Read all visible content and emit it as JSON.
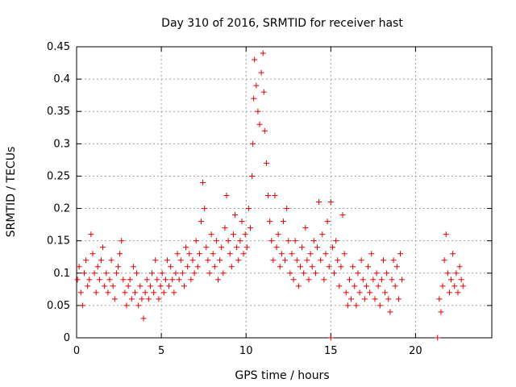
{
  "chart_data": {
    "type": "scatter",
    "title": "Day 310 of 2016, SRMTID for receiver hast",
    "xlabel": "GPS time / hours",
    "ylabel": "SRMTID / TECUs",
    "xlim": [
      0,
      24.5
    ],
    "ylim": [
      0,
      0.45
    ],
    "xticks": [
      "0",
      "5",
      "10",
      "15",
      "20"
    ],
    "yticks": [
      "0",
      "0.05",
      "0.1",
      "0.15",
      "0.2",
      "0.25",
      "0.3",
      "0.35",
      "0.4",
      "0.45"
    ],
    "grid": true,
    "marker": "+",
    "color": "#e00000",
    "series": [
      {
        "points": [
          [
            0.05,
            0.09
          ],
          [
            0.15,
            0.11
          ],
          [
            0.25,
            0.07
          ],
          [
            0.35,
            0.05
          ],
          [
            0.45,
            0.1
          ],
          [
            0.55,
            0.12
          ],
          [
            0.65,
            0.08
          ],
          [
            0.75,
            0.09
          ],
          [
            0.85,
            0.16
          ],
          [
            0.95,
            0.13
          ],
          [
            1.05,
            0.1
          ],
          [
            1.15,
            0.07
          ],
          [
            1.25,
            0.11
          ],
          [
            1.35,
            0.09
          ],
          [
            1.45,
            0.12
          ],
          [
            1.55,
            0.14
          ],
          [
            1.65,
            0.08
          ],
          [
            1.75,
            0.1
          ],
          [
            1.85,
            0.07
          ],
          [
            1.95,
            0.09
          ],
          [
            2.05,
            0.12
          ],
          [
            2.15,
            0.08
          ],
          [
            2.25,
            0.06
          ],
          [
            2.35,
            0.1
          ],
          [
            2.45,
            0.11
          ],
          [
            2.55,
            0.13
          ],
          [
            2.65,
            0.15
          ],
          [
            2.75,
            0.09
          ],
          [
            2.85,
            0.07
          ],
          [
            2.95,
            0.05
          ],
          [
            3.05,
            0.08
          ],
          [
            3.15,
            0.09
          ],
          [
            3.25,
            0.06
          ],
          [
            3.35,
            0.11
          ],
          [
            3.45,
            0.07
          ],
          [
            3.55,
            0.1
          ],
          [
            3.65,
            0.05
          ],
          [
            3.75,
            0.08
          ],
          [
            3.85,
            0.06
          ],
          [
            3.95,
            0.03
          ],
          [
            4.05,
            0.07
          ],
          [
            4.15,
            0.09
          ],
          [
            4.25,
            0.06
          ],
          [
            4.35,
            0.08
          ],
          [
            4.45,
            0.1
          ],
          [
            4.55,
            0.07
          ],
          [
            4.65,
            0.12
          ],
          [
            4.75,
            0.09
          ],
          [
            4.85,
            0.06
          ],
          [
            4.95,
            0.08
          ],
          [
            5.05,
            0.1
          ],
          [
            5.15,
            0.07
          ],
          [
            5.25,
            0.09
          ],
          [
            5.35,
            0.12
          ],
          [
            5.45,
            0.08
          ],
          [
            5.55,
            0.11
          ],
          [
            5.65,
            0.09
          ],
          [
            5.75,
            0.07
          ],
          [
            5.85,
            0.1
          ],
          [
            5.95,
            0.13
          ],
          [
            6.05,
            0.09
          ],
          [
            6.15,
            0.12
          ],
          [
            6.25,
            0.1
          ],
          [
            6.35,
            0.08
          ],
          [
            6.45,
            0.14
          ],
          [
            6.55,
            0.11
          ],
          [
            6.65,
            0.13
          ],
          [
            6.75,
            0.09
          ],
          [
            6.85,
            0.12
          ],
          [
            6.95,
            0.1
          ],
          [
            7.05,
            0.15
          ],
          [
            7.15,
            0.11
          ],
          [
            7.25,
            0.13
          ],
          [
            7.35,
            0.18
          ],
          [
            7.45,
            0.24
          ],
          [
            7.55,
            0.2
          ],
          [
            7.65,
            0.14
          ],
          [
            7.75,
            0.12
          ],
          [
            7.85,
            0.1
          ],
          [
            7.95,
            0.16
          ],
          [
            8.05,
            0.13
          ],
          [
            8.15,
            0.11
          ],
          [
            8.25,
            0.15
          ],
          [
            8.35,
            0.09
          ],
          [
            8.45,
            0.12
          ],
          [
            8.55,
            0.14
          ],
          [
            8.65,
            0.1
          ],
          [
            8.75,
            0.17
          ],
          [
            8.85,
            0.22
          ],
          [
            8.95,
            0.15
          ],
          [
            9.05,
            0.13
          ],
          [
            9.15,
            0.11
          ],
          [
            9.25,
            0.16
          ],
          [
            9.35,
            0.19
          ],
          [
            9.45,
            0.14
          ],
          [
            9.55,
            0.12
          ],
          [
            9.65,
            0.15
          ],
          [
            9.75,
            0.18
          ],
          [
            9.85,
            0.13
          ],
          [
            9.95,
            0.16
          ],
          [
            10.05,
            0.14
          ],
          [
            10.15,
            0.2
          ],
          [
            10.25,
            0.17
          ],
          [
            10.35,
            0.25
          ],
          [
            10.4,
            0.3
          ],
          [
            10.45,
            0.37
          ],
          [
            10.5,
            0.43
          ],
          [
            10.6,
            0.39
          ],
          [
            10.7,
            0.35
          ],
          [
            10.8,
            0.33
          ],
          [
            10.9,
            0.41
          ],
          [
            11.0,
            0.44
          ],
          [
            11.05,
            0.38
          ],
          [
            11.1,
            0.32
          ],
          [
            11.2,
            0.27
          ],
          [
            11.3,
            0.22
          ],
          [
            11.4,
            0.18
          ],
          [
            11.5,
            0.15
          ],
          [
            11.6,
            0.12
          ],
          [
            11.7,
            0.22
          ],
          [
            11.8,
            0.14
          ],
          [
            11.9,
            0.16
          ],
          [
            12.0,
            0.11
          ],
          [
            12.1,
            0.13
          ],
          [
            12.2,
            0.18
          ],
          [
            12.3,
            0.12
          ],
          [
            12.4,
            0.2
          ],
          [
            12.5,
            0.15
          ],
          [
            12.6,
            0.1
          ],
          [
            12.7,
            0.13
          ],
          [
            12.8,
            0.09
          ],
          [
            12.9,
            0.15
          ],
          [
            13.0,
            0.12
          ],
          [
            13.1,
            0.08
          ],
          [
            13.2,
            0.11
          ],
          [
            13.3,
            0.14
          ],
          [
            13.4,
            0.1
          ],
          [
            13.5,
            0.17
          ],
          [
            13.6,
            0.12
          ],
          [
            13.7,
            0.09
          ],
          [
            13.8,
            0.13
          ],
          [
            13.9,
            0.11
          ],
          [
            14.0,
            0.15
          ],
          [
            14.1,
            0.1
          ],
          [
            14.2,
            0.14
          ],
          [
            14.3,
            0.21
          ],
          [
            14.4,
            0.12
          ],
          [
            14.5,
            0.16
          ],
          [
            14.6,
            0.09
          ],
          [
            14.7,
            0.13
          ],
          [
            14.8,
            0.18
          ],
          [
            14.9,
            0.11
          ],
          [
            15.0,
            0.21
          ],
          [
            15.1,
            0.14
          ],
          [
            15.2,
            0.1
          ],
          [
            15.3,
            0.15
          ],
          [
            15.4,
            0.12
          ],
          [
            15.5,
            0.08
          ],
          [
            15.6,
            0.11
          ],
          [
            15.7,
            0.19
          ],
          [
            15.8,
            0.13
          ],
          [
            15.9,
            0.07
          ],
          [
            16.0,
            0.05
          ],
          [
            16.1,
            0.09
          ],
          [
            16.2,
            0.06
          ],
          [
            16.3,
            0.11
          ],
          [
            16.4,
            0.08
          ],
          [
            16.5,
            0.05
          ],
          [
            16.6,
            0.1
          ],
          [
            16.7,
            0.07
          ],
          [
            16.8,
            0.12
          ],
          [
            16.9,
            0.09
          ],
          [
            17.0,
            0.06
          ],
          [
            17.1,
            0.08
          ],
          [
            17.2,
            0.11
          ],
          [
            17.3,
            0.07
          ],
          [
            17.4,
            0.13
          ],
          [
            17.5,
            0.09
          ],
          [
            17.6,
            0.06
          ],
          [
            17.7,
            0.1
          ],
          [
            17.8,
            0.08
          ],
          [
            17.9,
            0.05
          ],
          [
            18.0,
            0.09
          ],
          [
            18.1,
            0.12
          ],
          [
            18.2,
            0.07
          ],
          [
            18.3,
            0.1
          ],
          [
            18.4,
            0.06
          ],
          [
            18.5,
            0.04
          ],
          [
            18.6,
            0.09
          ],
          [
            18.7,
            0.12
          ],
          [
            18.8,
            0.08
          ],
          [
            18.9,
            0.11
          ],
          [
            19.0,
            0.06
          ],
          [
            19.1,
            0.13
          ],
          [
            19.2,
            0.09
          ],
          [
            21.4,
            0.06
          ],
          [
            21.5,
            0.04
          ],
          [
            21.6,
            0.08
          ],
          [
            21.7,
            0.12
          ],
          [
            21.8,
            0.16
          ],
          [
            21.9,
            0.1
          ],
          [
            22.0,
            0.07
          ],
          [
            22.1,
            0.09
          ],
          [
            22.2,
            0.13
          ],
          [
            22.3,
            0.08
          ],
          [
            22.4,
            0.1
          ],
          [
            22.5,
            0.07
          ],
          [
            22.6,
            0.11
          ],
          [
            22.7,
            0.09
          ],
          [
            22.8,
            0.08
          ],
          [
            15.0,
            0.0
          ],
          [
            21.3,
            0.0
          ]
        ]
      }
    ]
  }
}
